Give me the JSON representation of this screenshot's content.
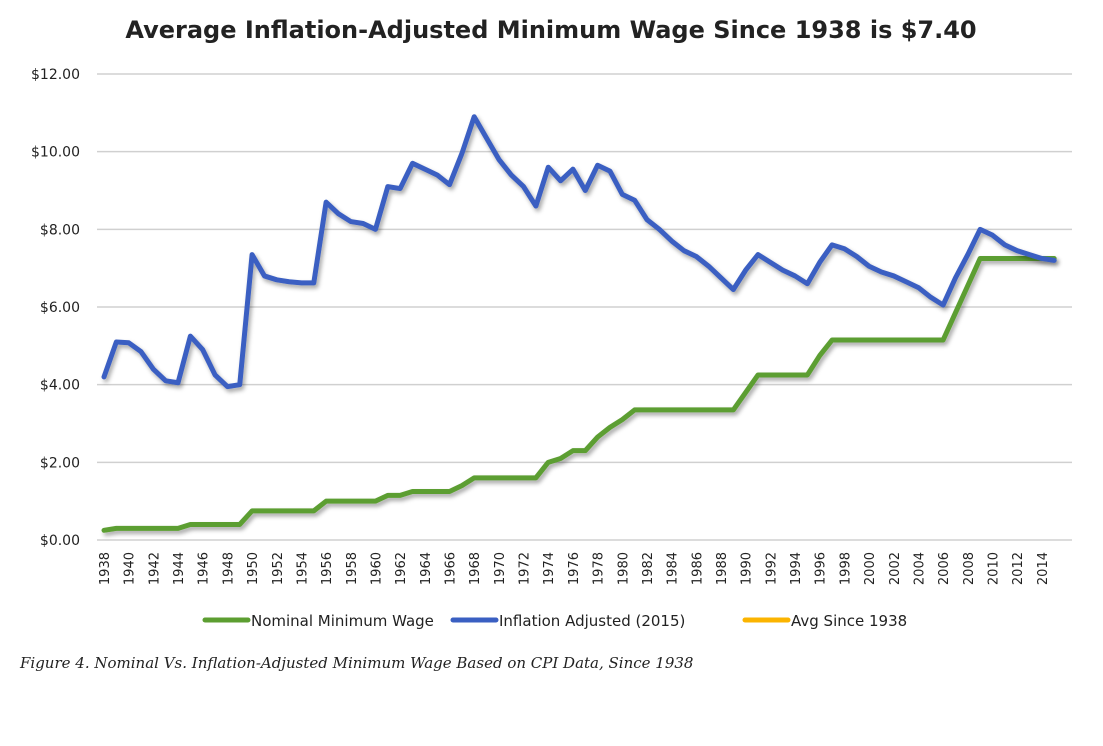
{
  "chart_data": {
    "type": "line",
    "title": "Average Inflation-Adjusted Minimum Wage Since 1938 is $7.40",
    "xlabel": "",
    "ylabel": "",
    "ylim": [
      0,
      12
    ],
    "yticks": [
      "$0.00",
      "$2.00",
      "$4.00",
      "$6.00",
      "$8.00",
      "$10.00",
      "$12.00"
    ],
    "ytick_values": [
      0,
      2,
      4,
      6,
      8,
      10,
      12
    ],
    "x_start": 1938,
    "x_end": 2015,
    "xtick_step": 2,
    "grid": true,
    "legend_placement": "bottom",
    "series": [
      {
        "name": "Nominal Minimum Wage",
        "color": "#5c9e31",
        "values": [
          0.25,
          0.3,
          0.3,
          0.3,
          0.3,
          0.3,
          0.3,
          0.4,
          0.4,
          0.4,
          0.4,
          0.4,
          0.75,
          0.75,
          0.75,
          0.75,
          0.75,
          0.75,
          1.0,
          1.0,
          1.0,
          1.0,
          1.0,
          1.15,
          1.15,
          1.25,
          1.25,
          1.25,
          1.25,
          1.4,
          1.6,
          1.6,
          1.6,
          1.6,
          1.6,
          1.6,
          2.0,
          2.1,
          2.3,
          2.3,
          2.65,
          2.9,
          3.1,
          3.35,
          3.35,
          3.35,
          3.35,
          3.35,
          3.35,
          3.35,
          3.35,
          3.35,
          3.8,
          4.25,
          4.25,
          4.25,
          4.25,
          4.25,
          4.75,
          5.15,
          5.15,
          5.15,
          5.15,
          5.15,
          5.15,
          5.15,
          5.15,
          5.15,
          5.15,
          5.85,
          6.55,
          7.25,
          7.25,
          7.25,
          7.25,
          7.25,
          7.25,
          7.25
        ]
      },
      {
        "name": "Inflation Adjusted (2015)",
        "color": "#3a5fc2",
        "values": [
          4.2,
          5.1,
          5.08,
          4.85,
          4.4,
          4.1,
          4.05,
          5.25,
          4.9,
          4.25,
          3.95,
          4.0,
          7.35,
          6.8,
          6.7,
          6.65,
          6.62,
          6.62,
          8.7,
          8.4,
          8.2,
          8.15,
          8.0,
          9.1,
          9.05,
          9.7,
          9.55,
          9.4,
          9.15,
          9.95,
          10.9,
          10.35,
          9.8,
          9.4,
          9.1,
          8.6,
          9.6,
          9.25,
          9.55,
          9.0,
          9.65,
          9.5,
          8.9,
          8.75,
          8.25,
          8.0,
          7.7,
          7.45,
          7.3,
          7.05,
          6.75,
          6.45,
          6.95,
          7.35,
          7.15,
          6.95,
          6.8,
          6.6,
          7.15,
          7.6,
          7.5,
          7.3,
          7.05,
          6.9,
          6.8,
          6.65,
          6.5,
          6.25,
          6.05,
          6.75,
          7.35,
          8.0,
          7.85,
          7.6,
          7.45,
          7.35,
          7.25,
          7.2
        ]
      },
      {
        "name": "Avg Since 1938",
        "color": "#fbb400",
        "values": [
          7.4,
          7.4
        ]
      }
    ]
  },
  "caption": "Figure 4. Nominal Vs. Inflation-Adjusted Minimum Wage Based on CPI Data, Since 1938"
}
